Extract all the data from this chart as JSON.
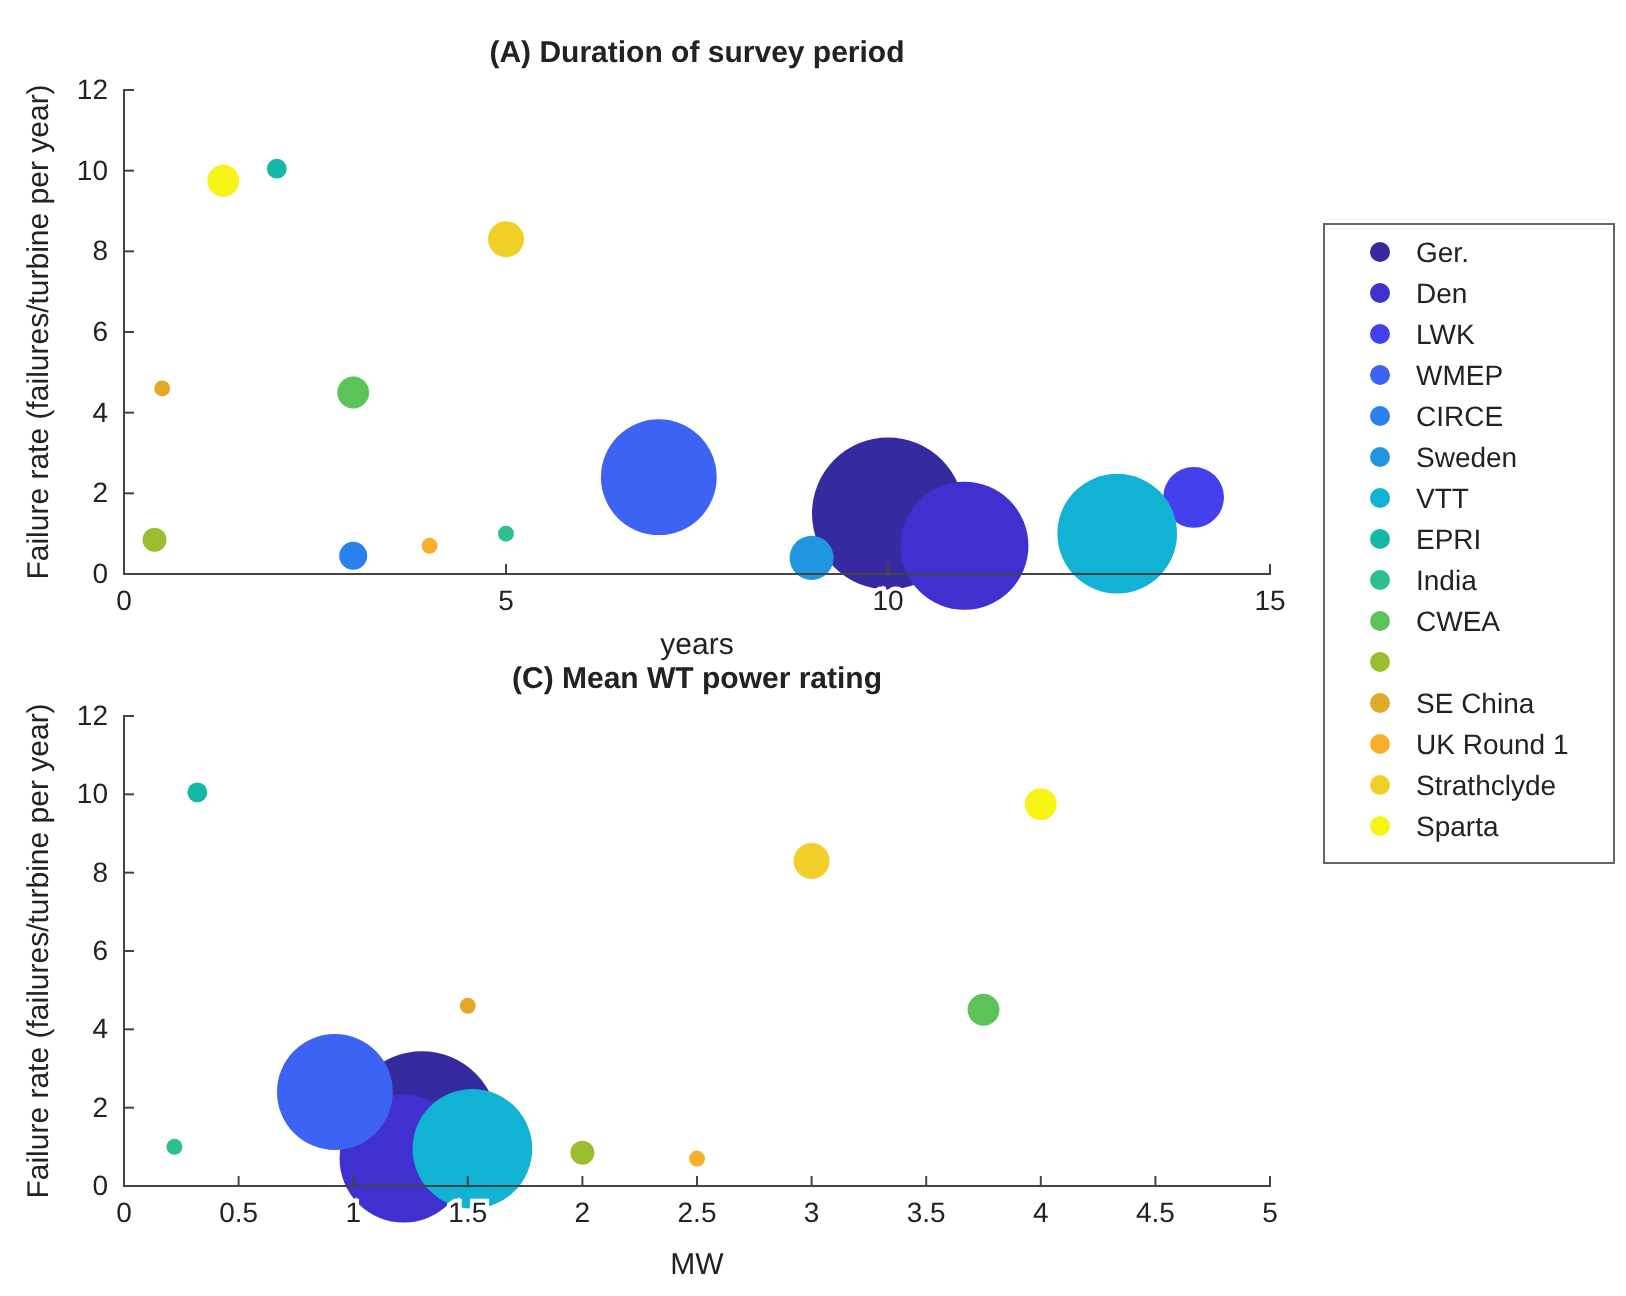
{
  "chart_data": [
    {
      "type": "bubble",
      "title": "(A) Duration of survey period",
      "xlabel": "years",
      "ylabel": "Failure rate (failures/turbine per year)",
      "xlim": [
        0,
        15
      ],
      "xticks": [
        0,
        5,
        10,
        15
      ],
      "ylim": [
        0,
        12
      ],
      "yticks": [
        0,
        2,
        4,
        6,
        8,
        10,
        12
      ],
      "legend": "right",
      "series": [
        {
          "name": "Ger.",
          "color": "#352a9f",
          "x": [
            10
          ],
          "values": [
            1.5
          ],
          "sizes": [
            1
          ]
        },
        {
          "name": "Den",
          "color": "#4030d0",
          "x": [
            11
          ],
          "values": [
            0.7
          ],
          "sizes": [
            0.71
          ]
        },
        {
          "name": "LWK",
          "color": "#4440ee",
          "x": [
            14
          ],
          "values": [
            1.9
          ],
          "sizes": [
            0.16
          ]
        },
        {
          "name": "WMEP",
          "color": "#3d63f5",
          "x": [
            7
          ],
          "values": [
            2.4
          ],
          "sizes": [
            0.58
          ]
        },
        {
          "name": "CIRCE",
          "color": "#2a80ee",
          "x": [
            3
          ],
          "values": [
            0.45
          ],
          "sizes": [
            0.034
          ]
        },
        {
          "name": "Sweden",
          "color": "#2196e0",
          "x": [
            9
          ],
          "values": [
            0.4
          ],
          "sizes": [
            0.084
          ]
        },
        {
          "name": "VTT",
          "color": "#12b2d4",
          "x": [
            13
          ],
          "values": [
            1.0
          ],
          "sizes": [
            0.62
          ]
        },
        {
          "name": "EPRI",
          "color": "#14b8a8",
          "x": [
            2
          ],
          "values": [
            10.05
          ],
          "sizes": [
            0.017
          ]
        },
        {
          "name": "India",
          "color": "#2ec08c",
          "x": [
            5
          ],
          "values": [
            1.0
          ],
          "sizes": [
            0.011
          ]
        },
        {
          "name": "CWEA",
          "color": "#5cc25a",
          "x": [
            3
          ],
          "values": [
            4.5
          ],
          "sizes": [
            0.044
          ]
        },
        {
          "color": "#9cbd30",
          "x": [
            0.4
          ],
          "values": [
            0.85
          ],
          "sizes": [
            0.025
          ]
        },
        {
          "name": "SE China",
          "color": "#e0aa28",
          "x": [
            0.5
          ],
          "values": [
            4.6
          ],
          "sizes": [
            0.011
          ]
        },
        {
          "name": "UK Round 1",
          "color": "#f8b02c",
          "x": [
            4
          ],
          "values": [
            0.7
          ],
          "sizes": [
            0.011
          ]
        },
        {
          "name": "Strathclyde",
          "color": "#f0d028",
          "x": [
            5
          ],
          "values": [
            8.3
          ],
          "sizes": [
            0.056
          ]
        },
        {
          "name": "Sparta",
          "color": "#f8f418",
          "x": [
            1.3
          ],
          "values": [
            9.75
          ],
          "sizes": [
            0.044
          ]
        }
      ]
    },
    {
      "type": "bubble",
      "title": "(C) Mean WT power rating",
      "xlabel": "MW",
      "ylabel": "Failure rate (failures/turbine per year)",
      "xlim": [
        0,
        5
      ],
      "xticks": [
        0,
        0.5,
        1,
        1.5,
        2,
        2.5,
        3,
        3.5,
        4,
        4.5,
        5
      ],
      "ylim": [
        0,
        12
      ],
      "yticks": [
        0,
        2,
        4,
        6,
        8,
        10,
        12
      ],
      "series": [
        {
          "color": "#352a9f",
          "x": [
            1.3
          ],
          "values": [
            1.5
          ],
          "sizes": [
            1
          ]
        },
        {
          "color": "#4030d0",
          "x": [
            1.22
          ],
          "values": [
            0.7
          ],
          "sizes": [
            0.71
          ]
        },
        {
          "color": "#3d63f5",
          "x": [
            0.92
          ],
          "values": [
            2.4
          ],
          "sizes": [
            0.58
          ]
        },
        {
          "color": "#12b2d4",
          "x": [
            1.52
          ],
          "values": [
            0.95
          ],
          "sizes": [
            0.62
          ]
        },
        {
          "color": "#14b8a8",
          "x": [
            0.32
          ],
          "values": [
            10.05
          ],
          "sizes": [
            0.017
          ]
        },
        {
          "color": "#2ec08c",
          "x": [
            0.22
          ],
          "values": [
            1.0
          ],
          "sizes": [
            0.011
          ]
        },
        {
          "color": "#5cc25a",
          "x": [
            3.75
          ],
          "values": [
            4.5
          ],
          "sizes": [
            0.044
          ]
        },
        {
          "color": "#9cbd30",
          "x": [
            2
          ],
          "values": [
            0.85
          ],
          "sizes": [
            0.025
          ]
        },
        {
          "color": "#e0aa28",
          "x": [
            1.5
          ],
          "values": [
            4.6
          ],
          "sizes": [
            0.011
          ]
        },
        {
          "color": "#f8b02c",
          "x": [
            2.5
          ],
          "values": [
            0.7
          ],
          "sizes": [
            0.011
          ]
        },
        {
          "color": "#f0d028",
          "x": [
            3
          ],
          "values": [
            8.3
          ],
          "sizes": [
            0.056
          ]
        },
        {
          "color": "#f8f418",
          "x": [
            4
          ],
          "values": [
            9.75
          ],
          "sizes": [
            0.044
          ]
        }
      ]
    }
  ]
}
